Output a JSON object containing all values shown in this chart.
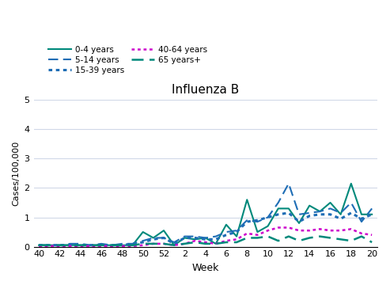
{
  "title": "Influenza B",
  "xlabel": "Week",
  "ylabel": "Cases/100,000",
  "ylim": [
    0,
    5
  ],
  "yticks": [
    0,
    1,
    2,
    3,
    4,
    5
  ],
  "weeks": [
    40,
    41,
    42,
    43,
    44,
    45,
    46,
    47,
    48,
    49,
    50,
    51,
    52,
    1,
    2,
    3,
    4,
    5,
    6,
    7,
    8,
    9,
    10,
    11,
    12,
    13,
    14,
    15,
    16,
    17,
    18,
    19,
    20
  ],
  "xtick_labels": [
    "40",
    "42",
    "44",
    "46",
    "48",
    "50",
    "52",
    "2",
    "4",
    "6",
    "8",
    "10",
    "12",
    "14",
    "16",
    "18",
    "20"
  ],
  "xtick_positions": [
    0,
    2,
    4,
    6,
    8,
    10,
    12,
    14,
    16,
    18,
    20,
    22,
    24,
    26,
    28,
    30,
    32
  ],
  "series": {
    "0-4 years": {
      "color": "#00897B",
      "linestyle": "solid",
      "linewidth": 1.5,
      "dashes": [],
      "values": [
        0.05,
        0.05,
        0.05,
        0.05,
        0.05,
        0.05,
        0.05,
        0.05,
        0.05,
        0.05,
        0.5,
        0.3,
        0.55,
        0.05,
        0.3,
        0.25,
        0.3,
        0.1,
        0.75,
        0.35,
        1.6,
        0.5,
        0.7,
        1.3,
        1.3,
        0.8,
        1.4,
        1.2,
        1.5,
        1.1,
        2.15,
        1.1,
        1.1
      ]
    },
    "5-14 years": {
      "color": "#1E6DB5",
      "linestyle": "dashed",
      "linewidth": 1.5,
      "dashes": [
        6,
        3
      ],
      "values": [
        0.05,
        0.05,
        0.05,
        0.1,
        0.1,
        0.05,
        0.1,
        0.05,
        0.1,
        0.1,
        0.2,
        0.3,
        0.3,
        0.15,
        0.35,
        0.35,
        0.3,
        0.35,
        0.5,
        0.55,
        0.9,
        0.85,
        1.0,
        1.5,
        2.15,
        1.1,
        1.15,
        1.2,
        1.3,
        1.15,
        1.5,
        0.85,
        1.3
      ]
    },
    "15-39 years": {
      "color": "#1E6DB5",
      "linestyle": "dotted",
      "linewidth": 2.2,
      "dashes": [
        1.5,
        1.5
      ],
      "values": [
        0.05,
        0.05,
        0.05,
        0.05,
        0.05,
        0.05,
        0.05,
        0.05,
        0.05,
        0.1,
        0.15,
        0.25,
        0.3,
        0.1,
        0.3,
        0.3,
        0.25,
        0.25,
        0.4,
        0.5,
        0.85,
        0.9,
        1.0,
        1.1,
        1.15,
        0.85,
        1.05,
        1.1,
        1.1,
        0.95,
        1.15,
        0.95,
        1.1
      ]
    },
    "40-64 years": {
      "color": "#CC00CC",
      "linestyle": "dotted",
      "linewidth": 1.8,
      "dashes": [
        1.5,
        1.5
      ],
      "values": [
        0.02,
        0.02,
        0.02,
        0.02,
        0.02,
        0.02,
        0.02,
        0.02,
        0.02,
        0.02,
        0.05,
        0.1,
        0.1,
        0.05,
        0.1,
        0.2,
        0.15,
        0.1,
        0.2,
        0.25,
        0.45,
        0.4,
        0.55,
        0.65,
        0.65,
        0.55,
        0.55,
        0.6,
        0.55,
        0.55,
        0.6,
        0.45,
        0.4
      ]
    },
    "65 years+": {
      "color": "#00897B",
      "linestyle": "dashed",
      "linewidth": 1.8,
      "dashes": [
        6,
        3
      ],
      "values": [
        0.05,
        0.05,
        0.05,
        0.05,
        0.05,
        0.05,
        0.05,
        0.05,
        0.05,
        0.05,
        0.1,
        0.1,
        0.1,
        0.05,
        0.1,
        0.15,
        0.1,
        0.1,
        0.15,
        0.15,
        0.3,
        0.3,
        0.35,
        0.2,
        0.35,
        0.2,
        0.3,
        0.35,
        0.3,
        0.25,
        0.2,
        0.35,
        0.15
      ]
    }
  },
  "legend_order": [
    "0-4 years",
    "5-14 years",
    "15-39 years",
    "40-64 years",
    "65 years+"
  ],
  "background_color": "#ffffff",
  "grid_color": "#d0d8e8"
}
